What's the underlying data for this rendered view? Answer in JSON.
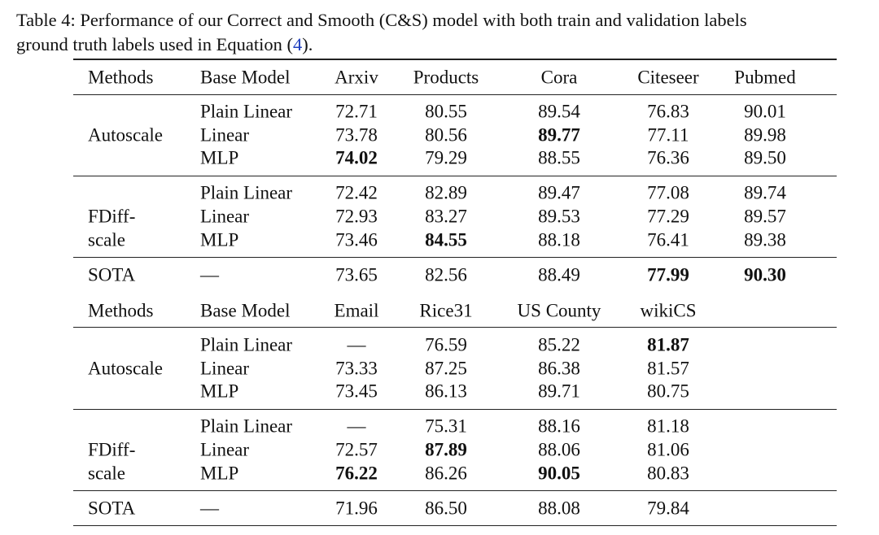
{
  "caption": {
    "line_1": "Table 4: Performance of our Correct and Smooth (C&S) model with both train and validation labels",
    "line_2": "ground truth labels used in Equation (",
    "ref": "4",
    "line_2_end": ")."
  },
  "sections": [
    {
      "header": [
        "Methods",
        "Base Model",
        "Arxiv",
        "Products",
        "Cora",
        "Citeseer",
        "Pubmed"
      ],
      "groups": [
        {
          "method": [
            "Autoscale"
          ],
          "rows": [
            [
              "Plain Linear",
              "72.71",
              "80.55",
              "89.54",
              "76.83",
              "90.01"
            ],
            [
              "Linear",
              "73.78",
              "80.56",
              "89.77",
              "77.11",
              "89.98"
            ],
            [
              "MLP",
              "74.02",
              "79.29",
              "88.55",
              "76.36",
              "89.50"
            ]
          ],
          "bold": [
            [
              1,
              3
            ],
            [
              2,
              1
            ]
          ]
        },
        {
          "method": [
            "FDiff-",
            "scale"
          ],
          "rows": [
            [
              "Plain Linear",
              "72.42",
              "82.89",
              "89.47",
              "77.08",
              "89.74"
            ],
            [
              "Linear",
              "72.93",
              "83.27",
              "89.53",
              "77.29",
              "89.57"
            ],
            [
              "MLP",
              "73.46",
              "84.55",
              "88.18",
              "76.41",
              "89.38"
            ]
          ],
          "bold": [
            [
              2,
              2
            ]
          ]
        },
        {
          "method": [
            "SOTA"
          ],
          "rows": [
            [
              "—",
              "73.65",
              "82.56",
              "88.49",
              "77.99",
              "90.30"
            ]
          ],
          "bold": [
            [
              0,
              4
            ],
            [
              0,
              5
            ]
          ]
        }
      ]
    },
    {
      "header": [
        "Methods",
        "Base Model",
        "Email",
        "Rice31",
        "US County",
        "wikiCS"
      ],
      "groups": [
        {
          "method": [
            "Autoscale"
          ],
          "rows": [
            [
              "Plain Linear",
              "—",
              "76.59",
              "85.22",
              "81.87"
            ],
            [
              "Linear",
              "73.33",
              "87.25",
              "86.38",
              "81.57"
            ],
            [
              "MLP",
              "73.45",
              "86.13",
              "89.71",
              "80.75"
            ]
          ],
          "bold": [
            [
              0,
              4
            ]
          ]
        },
        {
          "method": [
            "FDiff-",
            "scale"
          ],
          "rows": [
            [
              "Plain Linear",
              "—",
              "75.31",
              "88.16",
              "81.18"
            ],
            [
              "Linear",
              "72.57",
              "87.89",
              "88.06",
              "81.06"
            ],
            [
              "MLP",
              "76.22",
              "86.26",
              "90.05",
              "80.83"
            ]
          ],
          "bold": [
            [
              1,
              2
            ],
            [
              2,
              1
            ],
            [
              2,
              3
            ]
          ]
        },
        {
          "method": [
            "SOTA"
          ],
          "rows": [
            [
              "—",
              "71.96",
              "86.50",
              "88.08",
              "79.84"
            ]
          ],
          "bold": []
        }
      ]
    }
  ]
}
